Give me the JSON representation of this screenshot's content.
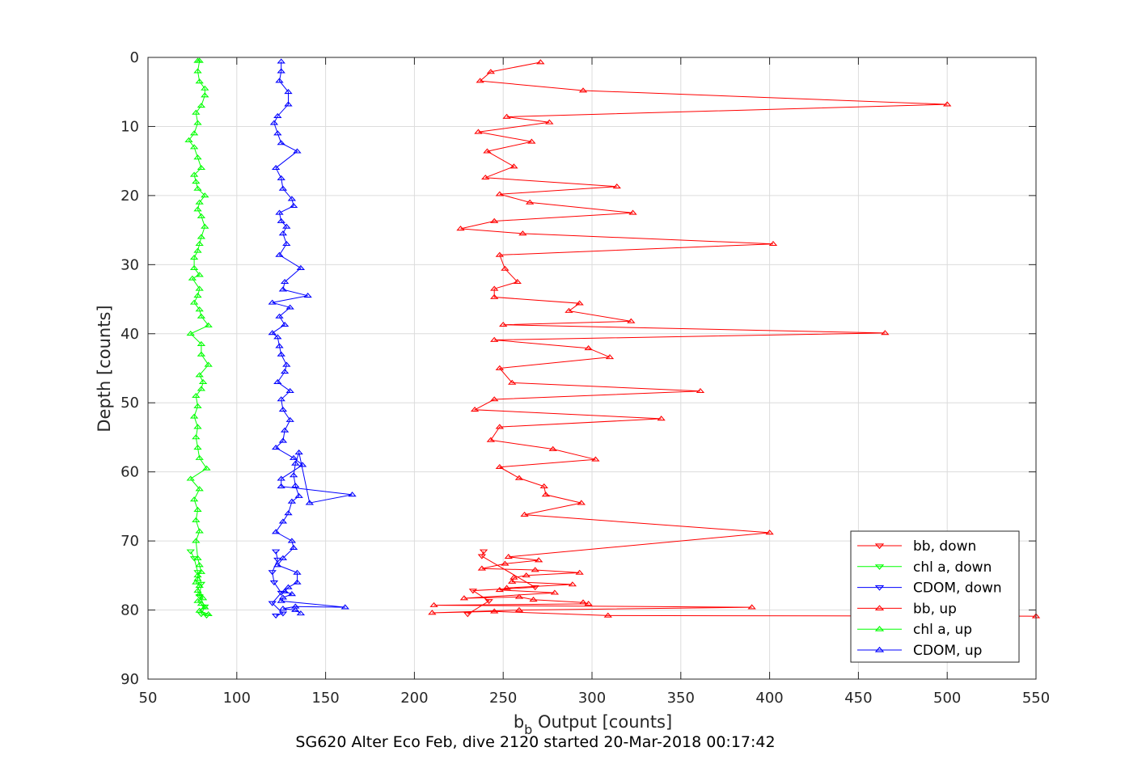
{
  "chart_data": {
    "type": "line",
    "title": "",
    "subtitle": "SG620 Alter Eco Feb, dive 2120 started 20-Mar-2018 00:17:42",
    "xlabel_main": "b",
    "xlabel_sub": "b",
    "xlabel_rest": " Output [counts]",
    "ylabel": "Depth [counts]",
    "xlim": [
      50,
      550
    ],
    "ylim": [
      0,
      90
    ],
    "y_reversed": true,
    "grid": true,
    "xticks": [
      "50",
      "100",
      "150",
      "200",
      "250",
      "300",
      "350",
      "400",
      "450",
      "500",
      "550"
    ],
    "yticks": [
      "0",
      "10",
      "20",
      "30",
      "40",
      "50",
      "60",
      "70",
      "80",
      "90"
    ],
    "legend_position": "bottom-right",
    "series": [
      {
        "name": "bb, down",
        "color": "#ff0000",
        "marker": "triangle-down",
        "x": [
          239,
          238,
          268,
          233,
          242,
          230
        ],
        "y": [
          71.5,
          72.2,
          76.7,
          77.2,
          78.7,
          80.6
        ]
      },
      {
        "name": "chl a, down",
        "color": "#00ff00",
        "marker": "triangle-down",
        "x": [
          74,
          76,
          78,
          80,
          79,
          82,
          80,
          83
        ],
        "y": [
          71.5,
          72.5,
          74.5,
          76.2,
          78.0,
          79.5,
          80.6,
          80.8
        ]
      },
      {
        "name": "CDOM, down",
        "color": "#0000ff",
        "marker": "triangle-down",
        "x": [
          122,
          123,
          120,
          121,
          125,
          120,
          126,
          122
        ],
        "y": [
          71.5,
          72.7,
          74.5,
          76.0,
          77.5,
          79.0,
          80.5,
          80.8
        ]
      },
      {
        "name": "bb, up",
        "color": "#ff0000",
        "marker": "triangle-up",
        "x": [
          550,
          309,
          245,
          210,
          259,
          390,
          211,
          298,
          295,
          267,
          259,
          228,
          279,
          248,
          252,
          289,
          255,
          256,
          263,
          293,
          268,
          238,
          251,
          270,
          253,
          400,
          262,
          294,
          274,
          273,
          259,
          248,
          302,
          278,
          243,
          248,
          339,
          234,
          245,
          361,
          255,
          248,
          310,
          298,
          245,
          465,
          250,
          322,
          287,
          293,
          245,
          245,
          258,
          251,
          248,
          402,
          261,
          226,
          245,
          323,
          265,
          248,
          314,
          240,
          256,
          241,
          266,
          236,
          276,
          252,
          500,
          295,
          237,
          243,
          271
        ],
        "y": [
          80.9,
          80.8,
          80.2,
          80.4,
          80.0,
          79.6,
          79.3,
          79.1,
          78.9,
          78.5,
          78.1,
          78.3,
          77.5,
          77.1,
          76.8,
          76.3,
          75.9,
          75.3,
          75.0,
          74.6,
          74.2,
          74.0,
          73.3,
          72.8,
          72.3,
          68.8,
          66.2,
          64.5,
          63.3,
          62.1,
          60.9,
          59.3,
          58.2,
          56.7,
          55.4,
          53.5,
          52.3,
          51.0,
          49.5,
          48.3,
          47.1,
          45.0,
          43.4,
          42.1,
          40.9,
          39.9,
          38.7,
          38.2,
          36.7,
          35.6,
          34.7,
          33.5,
          32.5,
          30.6,
          28.6,
          27.0,
          25.5,
          24.8,
          23.7,
          22.5,
          21.0,
          19.8,
          18.7,
          17.4,
          15.8,
          13.6,
          12.2,
          10.8,
          9.4,
          8.6,
          6.8,
          4.8,
          3.4,
          2.1,
          0.7
        ]
      },
      {
        "name": "chl a, up",
        "color": "#00ff00",
        "marker": "triangle-up",
        "x": [
          84,
          79,
          82,
          80,
          78,
          81,
          79,
          78,
          79,
          77,
          78,
          78,
          80,
          79,
          78,
          77,
          79,
          77,
          78,
          76,
          79,
          74,
          83,
          79,
          78,
          77,
          78,
          76,
          78,
          77,
          80,
          81,
          79,
          84,
          80,
          80,
          74,
          84,
          80,
          79,
          76,
          78,
          79,
          75,
          79,
          76,
          76,
          78,
          79,
          80,
          82,
          80,
          78,
          79,
          82,
          78,
          77,
          76,
          80,
          78,
          76,
          73,
          76,
          78,
          77,
          80,
          82,
          82,
          79,
          78,
          79,
          78
        ],
        "y": [
          80.6,
          80.1,
          79.6,
          79.1,
          78.7,
          78.3,
          77.7,
          77.2,
          76.5,
          76.0,
          75.5,
          75.0,
          74.5,
          73.5,
          72.5,
          70.0,
          68.6,
          67.0,
          65.5,
          64.0,
          62.5,
          61.0,
          59.5,
          58.0,
          56.5,
          55.0,
          53.5,
          52.0,
          50.5,
          49.0,
          48.0,
          47.0,
          46.0,
          44.5,
          43.0,
          41.5,
          40.0,
          38.8,
          37.5,
          36.5,
          35.5,
          34.5,
          33.5,
          32.0,
          31.5,
          30.5,
          29.0,
          28.0,
          27.0,
          26.0,
          24.5,
          23.0,
          22.0,
          21.0,
          20.0,
          19.0,
          18.0,
          17.0,
          16.0,
          14.5,
          13.0,
          12.0,
          11.0,
          9.5,
          8.0,
          7.0,
          5.5,
          4.5,
          3.5,
          2.0,
          0.5,
          0.5
        ]
      },
      {
        "name": "CDOM, up",
        "color": "#0000ff",
        "marker": "triangle-up",
        "x": [
          136,
          133,
          126,
          133,
          161,
          125,
          126,
          131,
          127,
          129,
          134,
          134,
          123,
          126,
          132,
          131,
          122,
          126,
          129,
          131,
          135,
          133,
          132,
          133,
          135,
          141,
          165,
          125,
          125,
          137,
          132,
          122,
          126,
          127,
          130,
          126,
          125,
          130,
          123,
          127,
          128,
          125,
          124,
          123,
          120,
          127,
          124,
          130,
          120,
          140,
          126,
          127,
          136,
          124,
          128,
          126,
          128,
          125,
          124,
          132,
          131,
          126,
          125,
          122,
          134,
          125,
          123,
          121,
          123,
          129,
          129,
          124,
          125,
          125
        ],
        "y": [
          80.5,
          80.0,
          79.8,
          79.5,
          79.6,
          78.7,
          78.2,
          77.7,
          77.3,
          76.7,
          76.0,
          74.6,
          73.5,
          72.5,
          71.0,
          70.0,
          68.7,
          67.2,
          66.0,
          64.3,
          63.5,
          62.0,
          60.5,
          58.8,
          57.2,
          64.5,
          63.3,
          62.1,
          61.0,
          59.0,
          58.0,
          56.5,
          55.5,
          54.0,
          52.5,
          51.0,
          49.5,
          48.3,
          47.0,
          45.5,
          44.5,
          43.0,
          41.8,
          40.5,
          39.9,
          38.7,
          37.5,
          36.2,
          35.5,
          34.5,
          33.6,
          32.5,
          30.5,
          28.6,
          27.0,
          25.5,
          24.5,
          23.7,
          22.5,
          21.5,
          20.5,
          19.0,
          17.5,
          16.0,
          13.6,
          12.4,
          11.0,
          9.5,
          8.5,
          6.8,
          5.0,
          3.4,
          2.0,
          0.6
        ]
      }
    ]
  }
}
